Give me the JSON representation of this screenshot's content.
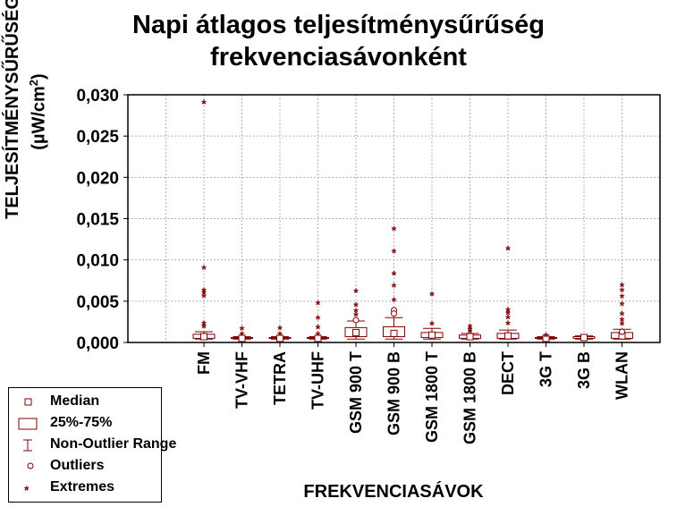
{
  "title_line1": "Napi átlagos teljesítménysűrűség",
  "title_line2": "frekvenciasávonként",
  "colors": {
    "mark": "#800000",
    "grid": "#b0b0b0",
    "axis": "#000000"
  },
  "legend": {
    "median": "Median",
    "box": "25%-75%",
    "range": "Non-Outlier Range",
    "outliers": "Outliers",
    "extremes": "Extremes"
  },
  "chart_data": {
    "type": "box",
    "title": "Napi átlagos teljesítménysűrűség frekvenciasávonként",
    "xlabel": "FREKVENCIASÁVOK",
    "ylabel_line1": "TELJESÍTMÉNYSŰRŰSÉG",
    "ylabel_line2_prefix": "(µW/cm",
    "ylabel_line2_sup": "2",
    "ylabel_line2_suffix": ")",
    "ylim": [
      0,
      0.03
    ],
    "yticks": [
      "0,000",
      "0,005",
      "0,010",
      "0,015",
      "0,020",
      "0,025",
      "0,030"
    ],
    "ytick_values": [
      0,
      0.005,
      0.01,
      0.015,
      0.02,
      0.025,
      0.03
    ],
    "grid": true,
    "legend_position": "bottom-left",
    "categories": [
      "FM",
      "TV-VHF",
      "TETRA",
      "TV-UHF",
      "GSM 900 T",
      "GSM 900 B",
      "GSM 1800 T",
      "GSM 1800 B",
      "DECT",
      "3G T",
      "3G B",
      "WLAN"
    ],
    "boxes": [
      {
        "median": 0.0007,
        "q1": 0.0005,
        "q3": 0.001,
        "wlo": 0.0004,
        "whi": 0.0013,
        "outliers": [],
        "extremes": [
          0.029,
          0.009,
          0.0063,
          0.006,
          0.0056,
          0.0023,
          0.0019
        ]
      },
      {
        "median": 0.0005,
        "q1": 0.0005,
        "q3": 0.0006,
        "wlo": 0.0004,
        "whi": 0.0007,
        "outliers": [],
        "extremes": [
          0.0016,
          0.001
        ]
      },
      {
        "median": 0.0005,
        "q1": 0.0005,
        "q3": 0.0006,
        "wlo": 0.0004,
        "whi": 0.0007,
        "outliers": [],
        "extremes": [
          0.0017,
          0.001
        ]
      },
      {
        "median": 0.0005,
        "q1": 0.0005,
        "q3": 0.0006,
        "wlo": 0.0004,
        "whi": 0.0007,
        "outliers": [],
        "extremes": [
          0.0047,
          0.0029,
          0.0018,
          0.001
        ]
      },
      {
        "median": 0.0012,
        "q1": 0.0007,
        "q3": 0.0018,
        "wlo": 0.0004,
        "whi": 0.0026,
        "outliers": [
          0.0027
        ],
        "extremes": [
          0.0062,
          0.0045,
          0.0038,
          0.0033
        ]
      },
      {
        "median": 0.0011,
        "q1": 0.0007,
        "q3": 0.0019,
        "wlo": 0.0004,
        "whi": 0.003,
        "outliers": [
          0.0039,
          0.0035
        ],
        "extremes": [
          0.0137,
          0.011,
          0.0083,
          0.0068,
          0.0051
        ]
      },
      {
        "median": 0.0009,
        "q1": 0.0006,
        "q3": 0.0012,
        "wlo": 0.0004,
        "whi": 0.0017,
        "outliers": [],
        "extremes": [
          0.0058,
          0.0022
        ]
      },
      {
        "median": 0.0007,
        "q1": 0.0005,
        "q3": 0.0009,
        "wlo": 0.0004,
        "whi": 0.0011,
        "outliers": [],
        "extremes": [
          0.0019,
          0.0015,
          0.0013
        ]
      },
      {
        "median": 0.0008,
        "q1": 0.0005,
        "q3": 0.0011,
        "wlo": 0.0004,
        "whi": 0.0015,
        "outliers": [],
        "extremes": [
          0.0113,
          0.0039,
          0.0035,
          0.003,
          0.0023
        ]
      },
      {
        "median": 0.0005,
        "q1": 0.0005,
        "q3": 0.0006,
        "wlo": 0.0004,
        "whi": 0.0007,
        "outliers": [],
        "extremes": [
          0.0008
        ]
      },
      {
        "median": 0.0006,
        "q1": 0.0005,
        "q3": 0.0007,
        "wlo": 0.0004,
        "whi": 0.0008,
        "outliers": [],
        "extremes": []
      },
      {
        "median": 0.0008,
        "q1": 0.0005,
        "q3": 0.0012,
        "wlo": 0.0004,
        "whi": 0.0016,
        "outliers": [
          0.0013
        ],
        "extremes": [
          0.0069,
          0.0063,
          0.0055,
          0.0046,
          0.0034,
          0.0027,
          0.0022
        ]
      }
    ]
  }
}
